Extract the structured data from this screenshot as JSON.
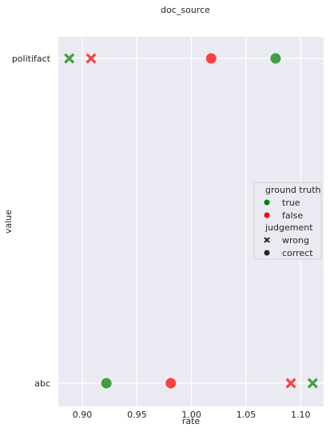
{
  "chart_data": {
    "type": "scatter",
    "title": "doc_source",
    "xlabel": "rate",
    "ylabel": "value",
    "xlim": [
      0.878,
      1.121
    ],
    "xticks": [
      "0.90",
      "0.95",
      "1.00",
      "1.05",
      "1.10"
    ],
    "xtick_values": [
      0.9,
      0.95,
      1.0,
      1.05,
      1.1
    ],
    "categories": [
      "politifact",
      "abc"
    ],
    "grid": true,
    "legend_position": "right",
    "colors": {
      "true": "#008000",
      "false": "#ff0000",
      "background": "#eaeaf2",
      "grid": "#ffffff"
    },
    "points": [
      {
        "category": "politifact",
        "x": 0.888,
        "ground_truth": "true",
        "judgement": "wrong"
      },
      {
        "category": "politifact",
        "x": 0.908,
        "ground_truth": "false",
        "judgement": "wrong"
      },
      {
        "category": "politifact",
        "x": 1.018,
        "ground_truth": "false",
        "judgement": "correct"
      },
      {
        "category": "politifact",
        "x": 1.077,
        "ground_truth": "true",
        "judgement": "correct"
      },
      {
        "category": "abc",
        "x": 0.922,
        "ground_truth": "true",
        "judgement": "correct"
      },
      {
        "category": "abc",
        "x": 0.981,
        "ground_truth": "false",
        "judgement": "correct"
      },
      {
        "category": "abc",
        "x": 1.091,
        "ground_truth": "false",
        "judgement": "wrong"
      },
      {
        "category": "abc",
        "x": 1.111,
        "ground_truth": "true",
        "judgement": "wrong"
      }
    ],
    "legend": {
      "hue_title": "ground truth",
      "hue_items": [
        {
          "label": "true",
          "key": "true"
        },
        {
          "label": "false",
          "key": "false"
        }
      ],
      "style_title": "judgement",
      "style_items": [
        {
          "label": "wrong",
          "marker": "x"
        },
        {
          "label": "correct",
          "marker": "o"
        }
      ]
    }
  }
}
